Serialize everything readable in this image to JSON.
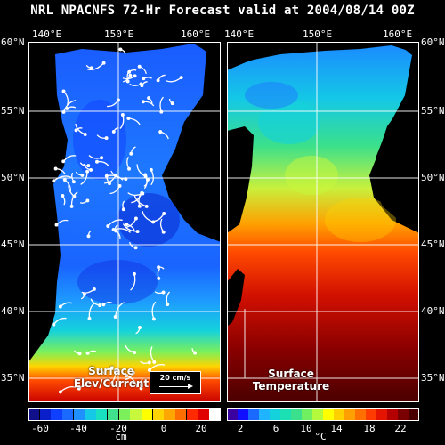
{
  "title": "NRL NPACNFS 72-Hr Forecast valid at 2004/08/14 00Z",
  "lon_labels": [
    "140°E",
    "150°E",
    "160°E"
  ],
  "lat_labels": [
    "60°N",
    "55°N",
    "50°N",
    "45°N",
    "40°N",
    "35°N"
  ],
  "left_panel": {
    "caption_line1": "Surface",
    "caption_line2": "Elev/Current",
    "reference_vector": "20 cm/s",
    "colorbar": {
      "unit": "cm",
      "ticks": [
        "-60",
        "-40",
        "-20",
        "0",
        "20"
      ],
      "colors": [
        "#10108a",
        "#0a1fc9",
        "#1040ff",
        "#1a6aff",
        "#1e90ff",
        "#14c8e6",
        "#18e0c0",
        "#40e08c",
        "#7cf05a",
        "#c8f83c",
        "#ffff00",
        "#ffd400",
        "#ffa600",
        "#ff6e00",
        "#ff2a00",
        "#e00000",
        "#ffffff"
      ]
    }
  },
  "right_panel": {
    "caption_line1": "Surface",
    "caption_line2": "Temperature",
    "colorbar": {
      "unit": "°C",
      "ticks": [
        "2",
        "6",
        "10",
        "14",
        "18",
        "22"
      ],
      "colors": [
        "#3a00a0",
        "#1010ff",
        "#1a6aff",
        "#1eb4ff",
        "#14d2dc",
        "#1ae0b4",
        "#3ae08c",
        "#70f060",
        "#b4fa3c",
        "#ffff00",
        "#ffd000",
        "#ffa000",
        "#ff7000",
        "#ff3c00",
        "#e41400",
        "#b40000",
        "#7a0000",
        "#4a0000"
      ]
    }
  }
}
